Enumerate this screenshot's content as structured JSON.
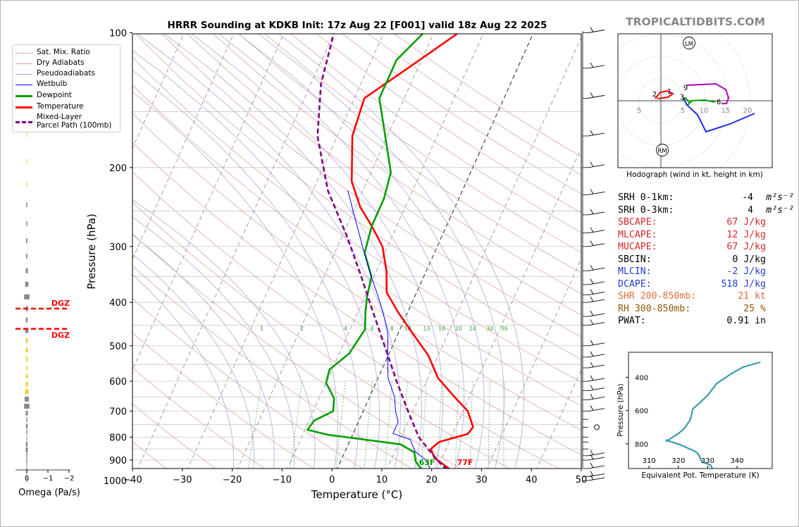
{
  "header": {
    "title": "HRRR Sounding at KDKB Init: 17z Aug 22 [F001] valid 18z Aug 22 2025",
    "brand": "TROPICALTIDBITS.COM"
  },
  "chart_data": [
    {
      "type": "line",
      "name": "skew-t",
      "xlabel": "Temperature (°C)",
      "ylabel": "Pressure (hPa)",
      "x_ticks": [
        -40,
        -30,
        -20,
        -10,
        0,
        10,
        20,
        30,
        40,
        50
      ],
      "y_ticks": [
        100,
        200,
        300,
        400,
        500,
        600,
        700,
        800,
        900,
        1000
      ],
      "xlim": [
        -40,
        50
      ],
      "ylim": [
        1050,
        100
      ],
      "y_scale": "log",
      "series": [
        {
          "name": "Temperature",
          "color": "#ff0000",
          "points": [
            [
              25.5,
              985
            ],
            [
              22,
              935
            ],
            [
              18.5,
              890
            ],
            [
              17,
              850
            ],
            [
              18,
              820
            ],
            [
              23,
              787
            ],
            [
              23.5,
              760
            ],
            [
              21,
              700
            ],
            [
              17,
              650
            ],
            [
              12,
              590
            ],
            [
              8,
              525
            ],
            [
              3,
              470
            ],
            [
              -2,
              420
            ],
            [
              -6,
              380
            ],
            [
              -8,
              340
            ],
            [
              -11,
              300
            ],
            [
              -15,
              270
            ],
            [
              -19,
              245
            ],
            [
              -23,
              215
            ],
            [
              -27,
              170
            ],
            [
              -28,
              140
            ],
            [
              -22,
              120
            ],
            [
              -15,
              100
            ]
          ]
        },
        {
          "name": "Dewpoint",
          "color": "#00a000",
          "points": [
            [
              17.5,
              985
            ],
            [
              17,
              945
            ],
            [
              15,
              905
            ],
            [
              14,
              865
            ],
            [
              10.5,
              830
            ],
            [
              -5,
              790
            ],
            [
              -9.5,
              770
            ],
            [
              -9,
              735
            ],
            [
              -6,
              700
            ],
            [
              -7,
              655
            ],
            [
              -10,
              605
            ],
            [
              -10.5,
              565
            ],
            [
              -8,
              520
            ],
            [
              -7,
              460
            ],
            [
              -8.5,
              420
            ],
            [
              -9.5,
              390
            ],
            [
              -10.5,
              350
            ],
            [
              -14,
              310
            ],
            [
              -15,
              270
            ],
            [
              -15,
              235
            ],
            [
              -16,
              205
            ],
            [
              -25,
              140
            ],
            [
              -25,
              115
            ],
            [
              -22,
              100
            ]
          ]
        },
        {
          "name": "Wetbulb",
          "color": "#0000ff",
          "points": [
            [
              21,
              985
            ],
            [
              19,
              950
            ],
            [
              17,
              900
            ],
            [
              14,
              860
            ],
            [
              12,
              810
            ],
            [
              8,
              785
            ],
            [
              8,
              740
            ],
            [
              6.5,
              700
            ],
            [
              5,
              650
            ],
            [
              2,
              590
            ],
            [
              0,
              530
            ],
            [
              -2,
              470
            ],
            [
              -5,
              420
            ],
            [
              -8,
              380
            ],
            [
              -11,
              345
            ],
            [
              -15,
              300
            ],
            [
              -19,
              260
            ],
            [
              -23,
              225
            ]
          ]
        },
        {
          "name": "Mixed-Layer Parcel Path (100mb)",
          "color": "#800080",
          "dashed": true,
          "points": [
            [
              25.5,
              985
            ],
            [
              21,
              930
            ],
            [
              17,
              860
            ],
            [
              13.5,
              800
            ],
            [
              9,
              700
            ],
            [
              4,
              600
            ],
            [
              -1,
              510
            ],
            [
              -7,
              420
            ],
            [
              -13,
              345
            ],
            [
              -19,
              285
            ],
            [
              -27,
              225
            ],
            [
              -34,
              170
            ],
            [
              -38,
              130
            ],
            [
              -40,
              100
            ]
          ]
        }
      ],
      "ml_labels": [
        1,
        2,
        4,
        6,
        8,
        10,
        13,
        16,
        20,
        24,
        30,
        36
      ],
      "surface_labels": {
        "dewpoint": "63F",
        "temperature": "77F"
      },
      "legend_position": "upper-left"
    },
    {
      "type": "bar",
      "name": "omega",
      "xlabel": "Omega (Pa/s)",
      "x_ticks": [
        0,
        -1,
        -2
      ],
      "annotations": [
        "DGZ",
        "DGZ"
      ],
      "dgz_hpa": [
        410,
        455
      ],
      "values_pa_s": [
        0.02,
        0.03,
        0.03,
        0.02,
        0.03,
        0.05,
        0.05,
        0.06,
        0.06,
        0.1,
        0.15,
        0.25,
        0.1,
        0.08,
        0.15,
        0.1,
        0.1,
        0.06,
        0.05,
        0.08,
        0.1,
        0.15,
        0.2,
        0.25,
        0.1,
        0.05,
        0.08,
        0.05,
        0.03,
        0.08,
        0.1,
        0.05,
        0.05,
        0.03,
        0.05,
        0.03,
        0.03
      ]
    },
    {
      "type": "line",
      "name": "hodograph",
      "xlabel": "Hodograph (wind in kt, height in km)",
      "ring_labels": [
        "5",
        "5",
        "10",
        "15",
        "20"
      ],
      "height_labels": [
        "1",
        "2",
        "3",
        "6",
        "9"
      ],
      "markers": [
        "LM",
        "RM"
      ]
    },
    {
      "type": "line",
      "name": "theta-e",
      "xlabel": "Equivalent Pot. Temperature (K)",
      "ylabel": "Pressure (hPa)",
      "x_ticks": [
        310,
        320,
        330,
        340
      ],
      "y_ticks": [
        400,
        600,
        800
      ],
      "xlim": [
        303,
        352
      ],
      "ylim": [
        1000,
        300
      ],
      "color": "#3a9aaa",
      "points": [
        [
          336,
          970
        ],
        [
          332,
          955
        ],
        [
          331,
          920
        ],
        [
          328,
          900
        ],
        [
          327,
          860
        ],
        [
          326,
          840
        ],
        [
          321,
          800
        ],
        [
          316,
          770
        ],
        [
          316,
          775
        ],
        [
          320,
          730
        ],
        [
          322,
          700
        ],
        [
          324,
          650
        ],
        [
          325,
          580
        ],
        [
          327,
          550
        ],
        [
          330,
          500
        ],
        [
          333,
          430
        ],
        [
          338,
          370
        ],
        [
          342,
          330
        ],
        [
          348,
          300
        ]
      ]
    }
  ],
  "legend": [
    {
      "label": "Sat. Mix. Ratio",
      "color": "#888888",
      "style": "dotted"
    },
    {
      "label": "Dry Adiabats",
      "color": "#e8a0a0",
      "style": "solid"
    },
    {
      "label": "Pseudoadiabats",
      "color": "#a0a0e8",
      "style": "solid"
    },
    {
      "label": "Wetbulb",
      "color": "#0000ff",
      "style": "solid"
    },
    {
      "label": "Dewpoint",
      "color": "#00a000",
      "style": "thick"
    },
    {
      "label": "Temperature",
      "color": "#ff0000",
      "style": "thick"
    },
    {
      "label": "Mixed-Layer",
      "label2": "Parcel Path (100mb)",
      "color": "#800080",
      "style": "dashed"
    }
  ],
  "params": [
    {
      "label": "SRH 0-1km:",
      "value": "-4",
      "unit": "m²s⁻²",
      "color": "#000000"
    },
    {
      "label": "SRH 0-3km:",
      "value": "4",
      "unit": "m²s⁻²",
      "color": "#000000"
    },
    {
      "label": "SBCAPE:",
      "value": "67 J/kg",
      "color": "#d62728"
    },
    {
      "label": "MLCAPE:",
      "value": "12 J/kg",
      "color": "#d62728"
    },
    {
      "label": "MUCAPE:",
      "value": "67 J/kg",
      "color": "#d62728"
    },
    {
      "label": "SBCIN:",
      "value": "0 J/kg",
      "color": "#000000"
    },
    {
      "label": "MLCIN:",
      "value": "-2 J/kg",
      "color": "#1f3fd6"
    },
    {
      "label": "DCAPE:",
      "value": "518 J/kg",
      "color": "#1f3fd6"
    },
    {
      "label": "SHR 200-850mb:",
      "value": "21 kt",
      "color": "#e0703a"
    },
    {
      "label": "RH 300-850mb:",
      "value": "25 %",
      "color": "#8b5a00"
    },
    {
      "label": "PWAT:",
      "value": "0.91 in",
      "color": "#000000"
    }
  ],
  "colors": {
    "temperature": "#ff0000",
    "dewpoint": "#00a000",
    "wetbulb": "#0000ff",
    "parcel": "#800080",
    "omega_bar": "#888888",
    "dgz": "#ff0000",
    "brand": "#888888"
  }
}
